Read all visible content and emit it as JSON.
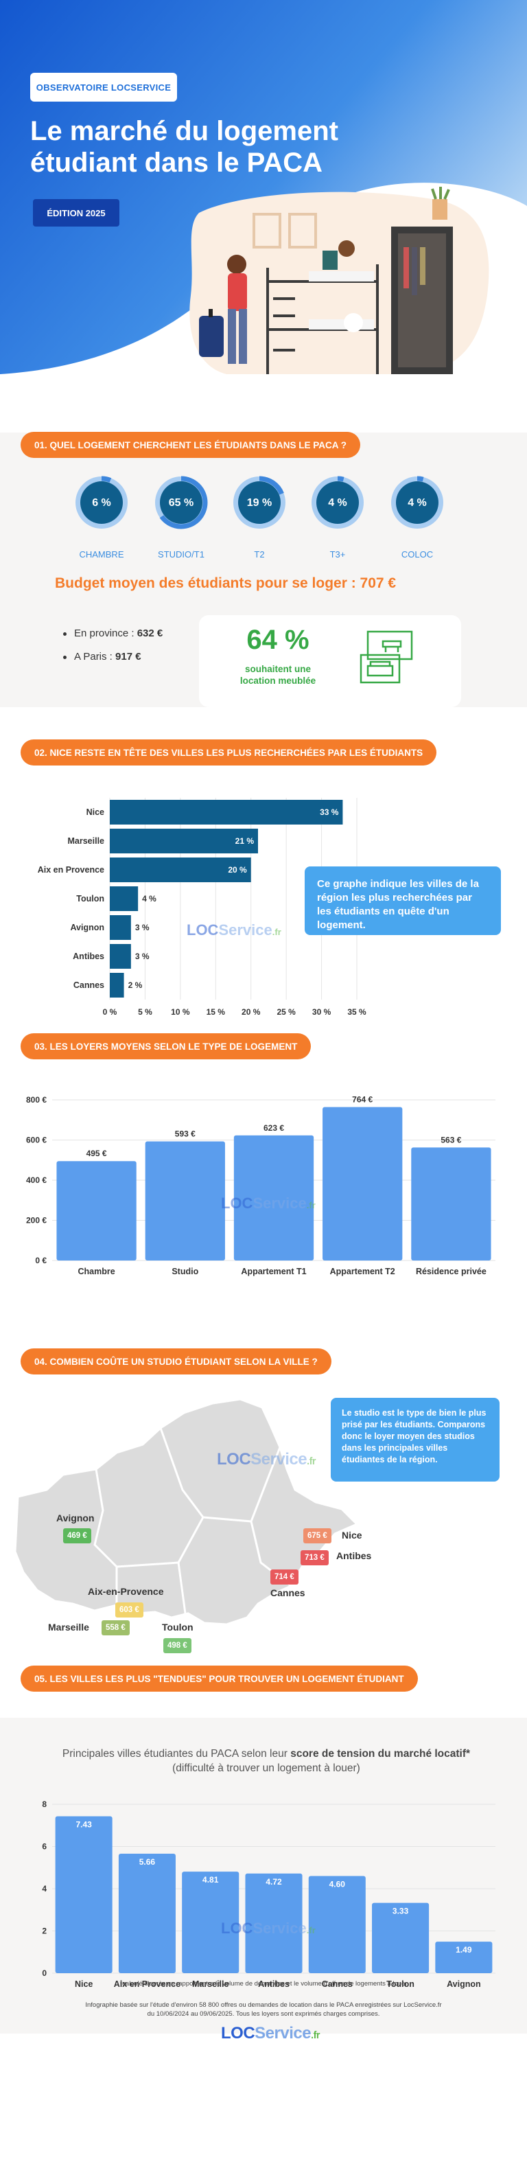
{
  "header": {
    "brand_label": "OBSERVATOIRE LOCSERVICE",
    "title": "Le marché du logement étudiant dans le PACA",
    "edition": "ÉDITION 2025"
  },
  "colors": {
    "accent_orange": "#f47c2a",
    "primary_blue": "#1e6fd9",
    "bar_blue": "#5b9ded",
    "dark_blue": "#0f5e8c",
    "green": "#36a845"
  },
  "section1": {
    "heading": "01. QUEL LOGEMENT CHERCHENT LES ÉTUDIANTS DANS LE PACA ?",
    "types": [
      {
        "label": "CHAMBRE",
        "value": 6,
        "display": "6 %"
      },
      {
        "label": "STUDIO/T1",
        "value": 65,
        "display": "65 %"
      },
      {
        "label": "T2",
        "value": 19,
        "display": "19 %"
      },
      {
        "label": "T3+",
        "value": 4,
        "display": "4 %"
      },
      {
        "label": "COLOC",
        "value": 4,
        "display": "4 %"
      }
    ],
    "budget_text": "Budget moyen des étudiants pour se loger : 707 €",
    "province_label": "En province :",
    "province_value": "632 €",
    "paris_label": "A Paris :",
    "paris_value": "917 €",
    "furnished_pct": "64 %",
    "furnished_text": "souhaitent une location meublée",
    "furniture_icon": "furniture-icon"
  },
  "section2": {
    "heading": "02. NICE RESTE EN TÊTE DES VILLES LES PLUS RECHERCHÉES PAR LES ÉTUDIANTS",
    "tooltip": "Ce graphe indique les villes de la région les plus recherchées par les étudiants en quête d'un logement."
  },
  "section3": {
    "heading": "03. LES LOYERS MOYENS SELON LE TYPE DE LOGEMENT"
  },
  "section4": {
    "heading": "04. COMBIEN COÛTE UN STUDIO ÉTUDIANT SELON LA VILLE ?",
    "tooltip": "Le studio est le type de bien le plus prisé par les étudiants. Comparons donc le loyer moyen des studios dans les principales villes étudiantes de la région.",
    "cities": [
      {
        "name": "Avignon",
        "price": "469 €",
        "color": "#5cb85c"
      },
      {
        "name": "Nice",
        "price": "675 €",
        "color": "#ef8f6c"
      },
      {
        "name": "Antibes",
        "price": "713 €",
        "color": "#e8595c"
      },
      {
        "name": "Cannes",
        "price": "714 €",
        "color": "#e8595c"
      },
      {
        "name": "Aix-en-Provence",
        "price": "603 €",
        "color": "#f2d36b"
      },
      {
        "name": "Marseille",
        "price": "558 €",
        "color": "#9fbf6a"
      },
      {
        "name": "Toulon",
        "price": "498 €",
        "color": "#7cc576"
      }
    ]
  },
  "section5": {
    "heading": "05. LES VILLES LES PLUS \"TENDUES\" POUR TROUVER UN LOGEMENT ÉTUDIANT",
    "subtitle_pre": "Principales villes étudiantes du PACA selon leur ",
    "subtitle_bold": "score de tension du marché locatif*",
    "subtitle_post": " (difficulté à trouver un logement à louer)"
  },
  "footer": {
    "note": "*calculé d'après un rapport entre le volume de demandes et le volume d'offres de logements à louer",
    "source": "Infographie basée sur l'étude d'environ 58 800 offres ou demandes de location dans le PACA enregistrées sur LocService.fr du 10/06/2024 au 09/06/2025. Tous les loyers sont exprimés charges comprises."
  },
  "logo": {
    "part1": "LOC",
    "part2": "Service",
    "part3": ".fr"
  },
  "chart_data": [
    {
      "type": "bar",
      "orientation": "horizontal",
      "categories": [
        "Nice",
        "Marseille",
        "Aix en Provence",
        "Toulon",
        "Avignon",
        "Antibes",
        "Cannes"
      ],
      "values": [
        33,
        21,
        20,
        4,
        3,
        3,
        2
      ],
      "value_labels": [
        "33 %",
        "21 %",
        "20 %",
        "4 %",
        "3 %",
        "3 %",
        "2 %"
      ],
      "xticks": [
        "0 %",
        "5 %",
        "10 %",
        "15 %",
        "20 %",
        "25 %",
        "30 %",
        "35 %"
      ],
      "xlim": [
        0,
        35
      ]
    },
    {
      "type": "bar",
      "categories": [
        "Chambre",
        "Studio",
        "Appartement T1",
        "Appartement T2",
        "Résidence privée"
      ],
      "values": [
        495,
        593,
        623,
        764,
        563
      ],
      "value_labels": [
        "495 €",
        "593 €",
        "623 €",
        "764 €",
        "563 €"
      ],
      "yticks": [
        "0 €",
        "200 €",
        "400 €",
        "600 €",
        "800 €"
      ],
      "ylim": [
        0,
        800
      ]
    },
    {
      "type": "bar",
      "categories": [
        "Nice",
        "Aix en Provence",
        "Marseille",
        "Antibes",
        "Cannes",
        "Toulon",
        "Avignon"
      ],
      "values": [
        7.43,
        5.66,
        4.81,
        4.72,
        4.6,
        3.33,
        1.49
      ],
      "value_labels": [
        "7.43",
        "5.66",
        "4.81",
        "4.72",
        "4.60",
        "3.33",
        "1.49"
      ],
      "yticks": [
        "0",
        "2",
        "4",
        "6",
        "8"
      ],
      "ylim": [
        0,
        8
      ]
    }
  ]
}
